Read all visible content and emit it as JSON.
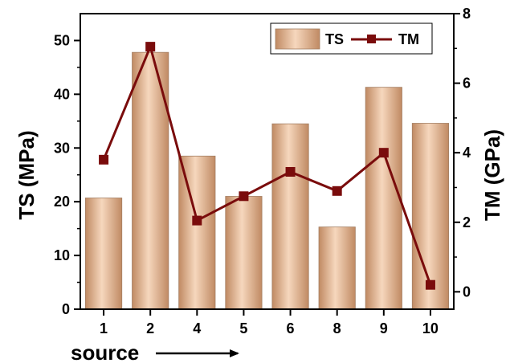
{
  "chart_data": {
    "type": "bar",
    "categories": [
      "1",
      "2",
      "4",
      "5",
      "6",
      "8",
      "9",
      "10"
    ],
    "series": [
      {
        "name": "TS",
        "type": "bar",
        "axis": "left",
        "values": [
          20.7,
          47.8,
          28.5,
          21.0,
          34.5,
          15.3,
          41.3,
          34.6
        ]
      },
      {
        "name": "TM",
        "type": "line",
        "axis": "right",
        "values": [
          3.8,
          7.05,
          2.05,
          2.75,
          3.45,
          2.9,
          4.0,
          0.2
        ]
      }
    ],
    "xlabel": "source",
    "ylabel": "TS (MPa)",
    "y2label": "TM (GPa)",
    "ylim": [
      0,
      55
    ],
    "y2lim": [
      -0.5,
      8
    ],
    "yticks": [
      "0",
      "10",
      "20",
      "30",
      "40",
      "50"
    ],
    "y2ticks": [
      "0",
      "2",
      "4",
      "6",
      "8"
    ],
    "grid": false,
    "legend_position": "top-right",
    "colors": {
      "bar_edge": "#a47f63",
      "bar_light": "#f6d7bd",
      "bar_mid": "#e3b48f",
      "bar_dark": "#c08a63",
      "line": "#7a0c0c",
      "axis": "#000000"
    }
  }
}
